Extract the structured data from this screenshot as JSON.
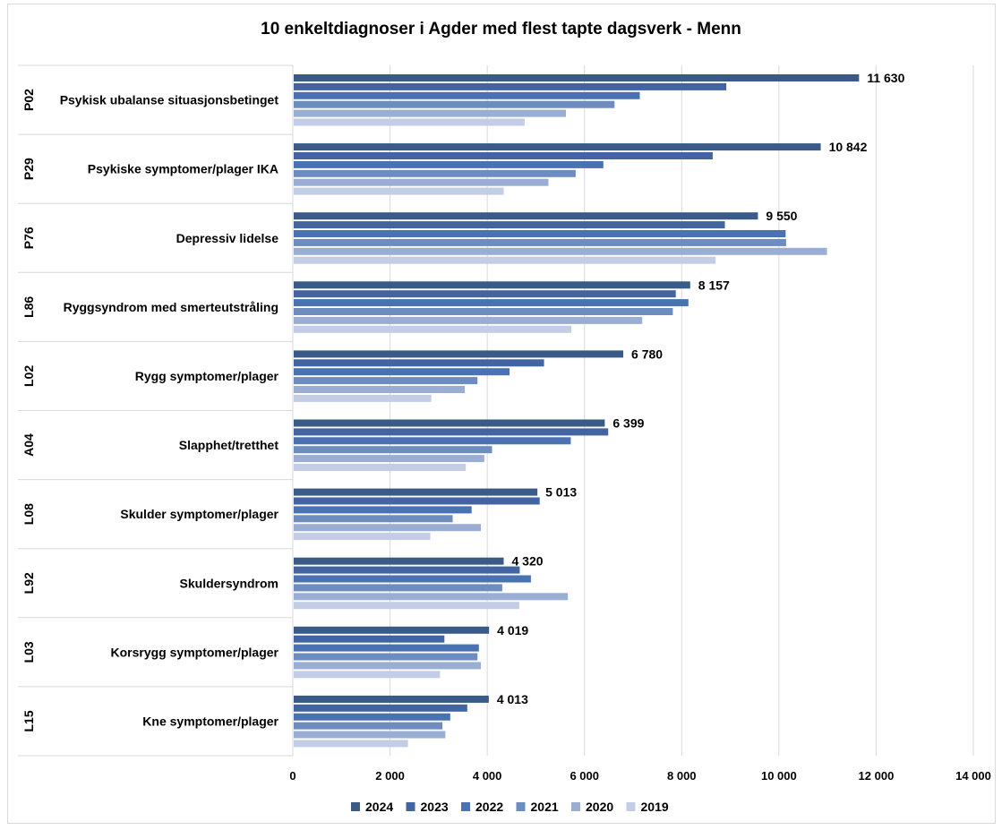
{
  "chart_data": {
    "type": "bar",
    "orientation": "horizontal",
    "title": "10 enkeltdiagnoser i Agder med flest tapte dagsverk - Menn",
    "codes": [
      "P02",
      "P29",
      "P76",
      "L86",
      "L02",
      "A04",
      "L08",
      "L92",
      "L03",
      "L15"
    ],
    "categories": [
      "Psykisk ubalanse situasjonsbetinget",
      "Psykiske symptomer/plager IKA",
      "Depressiv lidelse",
      "Ryggsyndrom med smerteutstråling",
      "Rygg symptomer/plager",
      "Slapphet/tretthet",
      "Skulder symptomer/plager",
      "Skuldersyndrom",
      "Korsrygg symptomer/plager",
      "Kne symptomer/plager"
    ],
    "series": [
      {
        "name": "2024",
        "color": "#3a5a87",
        "values": [
          11630,
          10842,
          9550,
          8157,
          6780,
          6399,
          5013,
          4320,
          4019,
          4013
        ]
      },
      {
        "name": "2023",
        "color": "#4264a0",
        "values": [
          8900,
          8620,
          8870,
          7860,
          5150,
          6470,
          5060,
          4650,
          3100,
          3570
        ]
      },
      {
        "name": "2022",
        "color": "#4a72b2",
        "values": [
          7120,
          6370,
          10120,
          8120,
          4440,
          5700,
          3660,
          4880,
          3810,
          3220
        ]
      },
      {
        "name": "2021",
        "color": "#6d8cc0",
        "values": [
          6600,
          5800,
          10130,
          7800,
          3780,
          4080,
          3270,
          4290,
          3780,
          3060
        ]
      },
      {
        "name": "2020",
        "color": "#9aaed4",
        "values": [
          5600,
          5240,
          10970,
          7170,
          3520,
          3920,
          3850,
          5640,
          3850,
          3120
        ]
      },
      {
        "name": "2019",
        "color": "#c3cde6",
        "values": [
          4750,
          4320,
          8680,
          5710,
          2830,
          3540,
          2810,
          4640,
          3010,
          2350
        ]
      }
    ],
    "data_labels": [
      "11 630",
      "10 842",
      "9 550",
      "8 157",
      "6 780",
      "6 399",
      "5 013",
      "4 320",
      "4 019",
      "4 013"
    ],
    "xlim": [
      0,
      14000
    ],
    "x_ticks": [
      "0",
      "2 000",
      "4 000",
      "6 000",
      "8 000",
      "10 000",
      "12 000",
      "14 000"
    ],
    "grid": "vertical",
    "legend_position": "bottom"
  }
}
